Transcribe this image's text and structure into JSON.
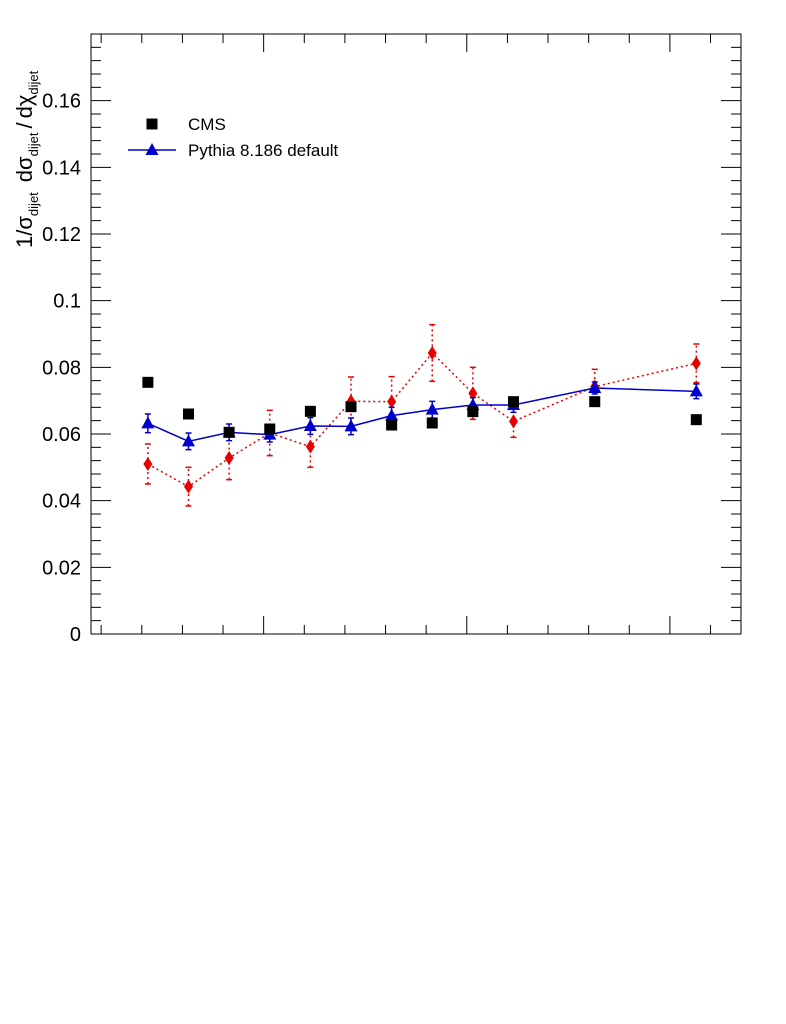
{
  "chart_data": {
    "type": "scatter",
    "title": "",
    "xlabel": "",
    "ylabel": {
      "parts": [
        "1/σ",
        "dijet",
        "dσ",
        "dijet",
        "/",
        "dχ",
        "dijet"
      ]
    },
    "xlim": [
      0.75,
      16.75
    ],
    "ylim": [
      0,
      0.18
    ],
    "yticks": [
      0,
      0.02,
      0.04,
      0.06,
      0.08,
      0.1,
      0.12,
      0.14,
      0.16
    ],
    "ytick_labels": [
      "0",
      "0.02",
      "0.04",
      "0.06",
      "0.08",
      "0.1",
      "0.12",
      "0.14",
      "0.16"
    ],
    "grid": false,
    "legend_position": "top-left",
    "legend": [
      {
        "label": "CMS",
        "marker": "square",
        "color": "#000000"
      },
      {
        "label": "Pythia 8.186 default",
        "marker": "triangle",
        "color": "#0000cc"
      }
    ],
    "series": [
      {
        "id": "cms",
        "name": "CMS",
        "marker": "square",
        "color": "#000000",
        "line": "none",
        "x": [
          2.15,
          3.15,
          4.15,
          5.15,
          6.15,
          7.15,
          8.15,
          9.15,
          10.15,
          11.15,
          13.15,
          15.65
        ],
        "y": [
          0.0755,
          0.066,
          0.0605,
          0.0615,
          0.0668,
          0.0682,
          0.0627,
          0.0633,
          0.0667,
          0.0697,
          0.0697,
          0.0643
        ]
      },
      {
        "id": "pythia",
        "name": "Pythia 8.186 default",
        "marker": "triangle",
        "color": "#0000cc",
        "line": "solid",
        "x": [
          2.15,
          3.15,
          4.15,
          5.15,
          6.15,
          7.15,
          8.15,
          9.15,
          10.15,
          11.15,
          13.15,
          15.65
        ],
        "y": [
          0.0632,
          0.0578,
          0.0605,
          0.0598,
          0.0624,
          0.0623,
          0.0655,
          0.0673,
          0.0687,
          0.0687,
          0.0738,
          0.0728
        ],
        "yerr": [
          0.0028,
          0.0025,
          0.0025,
          0.0022,
          0.0025,
          0.0025,
          0.0025,
          0.0025,
          0.0022,
          0.0022,
          0.0018,
          0.0022
        ]
      },
      {
        "id": "red",
        "marker": "diamond",
        "color": "#e60000",
        "line": "dotted",
        "x": [
          2.15,
          3.15,
          4.15,
          5.15,
          6.15,
          7.15,
          8.15,
          9.15,
          10.15,
          11.15,
          13.15,
          15.65
        ],
        "y": [
          0.051,
          0.0442,
          0.0528,
          0.0603,
          0.0562,
          0.0698,
          0.0697,
          0.0843,
          0.0722,
          0.0638,
          0.0742,
          0.0812
        ],
        "yerr": [
          0.006,
          0.0058,
          0.0065,
          0.0068,
          0.0062,
          0.0073,
          0.0075,
          0.0085,
          0.0078,
          0.0048,
          0.0052,
          0.0058
        ]
      }
    ]
  }
}
